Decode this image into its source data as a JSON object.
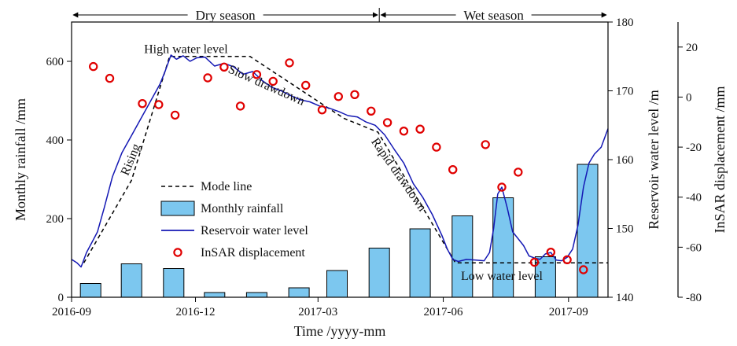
{
  "chart_data": {
    "type": "line",
    "xlabel": "Time /yyyy-mm",
    "x_ticks": [
      "2016-09",
      "2016-12",
      "2017-03",
      "2017-06",
      "2017-09"
    ],
    "x_range": [
      "2016-09-01",
      "2017-09-30"
    ],
    "y_left": {
      "label": "Monthly rainfall /mm",
      "range": [
        0,
        700
      ],
      "ticks": [
        0,
        200,
        400,
        600
      ]
    },
    "y_right": {
      "label": "Reservoir water level /m",
      "range": [
        140,
        180
      ],
      "ticks": [
        140,
        150,
        160,
        170,
        180
      ]
    },
    "y_right2": {
      "label": "InSAR displacement /mm",
      "range": [
        -80,
        30
      ],
      "ticks": [
        -80,
        -60,
        -40,
        -20,
        0,
        20
      ]
    },
    "legend": {
      "position": "center-left",
      "items": [
        {
          "label": "Mode line",
          "style": "dashed",
          "color": "#000000"
        },
        {
          "label": "Monthly rainfall",
          "style": "bar",
          "color": "#7cc7ef"
        },
        {
          "label": "Reservoir water level",
          "style": "line",
          "color": "#1418b4"
        },
        {
          "label": "InSAR displacement",
          "style": "circle",
          "color": "#e00000"
        }
      ]
    },
    "seasons": [
      {
        "label": "Dry season",
        "from": "2016-09-01",
        "to": "2017-04-15"
      },
      {
        "label": "Wet season",
        "from": "2017-04-15",
        "to": "2017-09-30"
      }
    ],
    "annotations": [
      {
        "text": "High water level",
        "x": "2016-11-24",
        "y": 175.5,
        "rotate": 0
      },
      {
        "text": "Slow drawdown",
        "x": "2017-01-21",
        "y": 170.3,
        "rotate": 24
      },
      {
        "text": "Rapid drawdown",
        "x": "2017-04-27",
        "y": 157.5,
        "rotate": 55
      },
      {
        "text": "Rising",
        "x": "2016-10-17",
        "y": 159.8,
        "rotate": -68
      },
      {
        "text": "Low water level",
        "x": "2017-07-14",
        "y": 142.5,
        "rotate": 0
      }
    ],
    "series": [
      {
        "name": "Monthly rainfall",
        "type": "bar",
        "axis": "y_left",
        "x": [
          "2016-09-15",
          "2016-10-15",
          "2016-11-15",
          "2016-12-15",
          "2017-01-15",
          "2017-02-15",
          "2017-03-15",
          "2017-04-15",
          "2017-05-15",
          "2017-06-15",
          "2017-07-15",
          "2017-08-15",
          "2017-09-15"
        ],
        "values": [
          35,
          85,
          73,
          12,
          12,
          24,
          68,
          125,
          174,
          207,
          253,
          103,
          338
        ]
      },
      {
        "name": "Mode line",
        "type": "line",
        "axis": "y_right",
        "x": [
          "2016-09-10",
          "2016-10-15",
          "2016-11-12",
          "2016-12-25",
          "2017-01-10",
          "2017-03-20",
          "2017-04-14",
          "2017-06-10",
          "2017-09-30"
        ],
        "values": [
          145,
          157,
          175,
          175,
          175,
          166,
          164,
          145,
          145
        ]
      },
      {
        "name": "Reservoir water level",
        "type": "line",
        "axis": "y_right",
        "x": [
          "2016-09-01",
          "2016-09-05",
          "2016-09-08",
          "2016-09-12",
          "2016-09-16",
          "2016-09-20",
          "2016-09-25",
          "2016-10-01",
          "2016-10-08",
          "2016-10-15",
          "2016-10-22",
          "2016-10-29",
          "2016-11-05",
          "2016-11-09",
          "2016-11-13",
          "2016-11-17",
          "2016-11-22",
          "2016-11-27",
          "2016-12-02",
          "2016-12-08",
          "2016-12-15",
          "2016-12-22",
          "2016-12-29",
          "2017-01-05",
          "2017-01-12",
          "2017-01-19",
          "2017-01-26",
          "2017-02-02",
          "2017-02-09",
          "2017-02-16",
          "2017-02-23",
          "2017-03-02",
          "2017-03-09",
          "2017-03-16",
          "2017-03-23",
          "2017-03-30",
          "2017-04-05",
          "2017-04-12",
          "2017-04-19",
          "2017-04-26",
          "2017-05-03",
          "2017-05-10",
          "2017-05-17",
          "2017-05-24",
          "2017-05-31",
          "2017-06-04",
          "2017-06-08",
          "2017-06-12",
          "2017-06-18",
          "2017-06-25",
          "2017-07-01",
          "2017-07-05",
          "2017-07-08",
          "2017-07-11",
          "2017-07-14",
          "2017-07-18",
          "2017-07-22",
          "2017-07-26",
          "2017-07-30",
          "2017-08-03",
          "2017-08-07",
          "2017-08-11",
          "2017-08-15",
          "2017-08-19",
          "2017-08-23",
          "2017-08-27",
          "2017-08-31",
          "2017-09-04",
          "2017-09-08",
          "2017-09-12",
          "2017-09-16",
          "2017-09-20",
          "2017-09-25",
          "2017-09-30"
        ],
        "values": [
          145.5,
          145.0,
          144.4,
          146.5,
          148.0,
          149.5,
          153.0,
          157.5,
          161.0,
          163.5,
          166.0,
          168.5,
          171.0,
          173.0,
          175.2,
          174.6,
          175.1,
          174.3,
          174.8,
          174.9,
          173.6,
          174.0,
          173.5,
          172.4,
          172.8,
          171.5,
          170.5,
          170.0,
          169.3,
          168.7,
          168.4,
          167.8,
          167.5,
          167.0,
          166.4,
          166.2,
          165.5,
          165.0,
          163.6,
          161.5,
          159.5,
          156.5,
          154.5,
          152.0,
          149.0,
          147.0,
          145.5,
          145.2,
          145.5,
          145.4,
          145.3,
          146.5,
          150.0,
          155.0,
          156.0,
          153.0,
          149.5,
          148.5,
          147.5,
          146.0,
          145.7,
          145.5,
          146.3,
          146.5,
          145.4,
          145.3,
          145.8,
          147.0,
          150.5,
          156.0,
          159.5,
          160.8,
          161.8,
          164.5
        ]
      },
      {
        "name": "InSAR displacement",
        "type": "scatter",
        "axis": "y_right2",
        "x": [
          "2016-09-17",
          "2016-09-29",
          "2016-10-23",
          "2016-11-04",
          "2016-11-16",
          "2016-12-10",
          "2016-12-22",
          "2017-01-03",
          "2017-01-15",
          "2017-01-27",
          "2017-02-08",
          "2017-02-20",
          "2017-03-04",
          "2017-03-16",
          "2017-03-28",
          "2017-04-09",
          "2017-04-21",
          "2017-05-03",
          "2017-05-15",
          "2017-05-27",
          "2017-06-08",
          "2017-07-02",
          "2017-07-14",
          "2017-07-26",
          "2017-08-07",
          "2017-08-19",
          "2017-08-31",
          "2017-09-12"
        ],
        "values": [
          12.2,
          7.5,
          -2.6,
          -3.0,
          -7.2,
          7.7,
          12.0,
          -3.6,
          9.0,
          6.3,
          13.7,
          4.7,
          -5.1,
          0.2,
          1.0,
          -5.6,
          -10.2,
          -13.6,
          -12.8,
          -20.0,
          -29.0,
          -19.0,
          -36.0,
          -30.0,
          -66.0,
          -62.0,
          -65.0,
          -69.0
        ]
      }
    ]
  }
}
